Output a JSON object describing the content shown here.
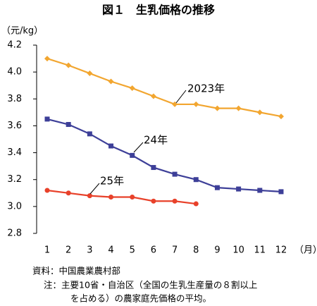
{
  "chart_data": {
    "type": "line",
    "title": "図１　生乳価格の推移",
    "y_unit": "（元/kg）",
    "x_unit": "（月）",
    "categories": [
      "1",
      "2",
      "3",
      "4",
      "5",
      "6",
      "7",
      "8",
      "9",
      "10",
      "11",
      "12"
    ],
    "series": [
      {
        "name": "2023年",
        "color": "#f2a630",
        "marker": "diamond",
        "values": [
          4.1,
          4.05,
          3.99,
          3.93,
          3.88,
          3.82,
          3.76,
          3.76,
          3.73,
          3.73,
          3.7,
          3.67
        ]
      },
      {
        "name": "24年",
        "color": "#3d3f98",
        "marker": "square",
        "values": [
          3.65,
          3.61,
          3.54,
          3.45,
          3.38,
          3.29,
          3.24,
          3.2,
          3.14,
          3.13,
          3.12,
          3.11
        ]
      },
      {
        "name": "25年",
        "color": "#e8412a",
        "marker": "circle",
        "values": [
          3.12,
          3.1,
          3.08,
          3.07,
          3.07,
          3.04,
          3.04,
          3.02,
          null,
          null,
          null,
          null
        ]
      }
    ],
    "ylim": [
      2.8,
      4.2
    ],
    "yticks": [
      2.8,
      {
        "value": 3.0,
        "label": "3.0"
      },
      3.2,
      3.4,
      3.6,
      3.8,
      {
        "value": 4.0,
        "label": "4.0"
      },
      4.2
    ],
    "grid": false,
    "notes": [
      "資料：中国農業農村部",
      "注：主要10省・自治区（全国の生乳生産量の８割以上",
      "を占める）の農家庭先価格の平均。"
    ]
  }
}
